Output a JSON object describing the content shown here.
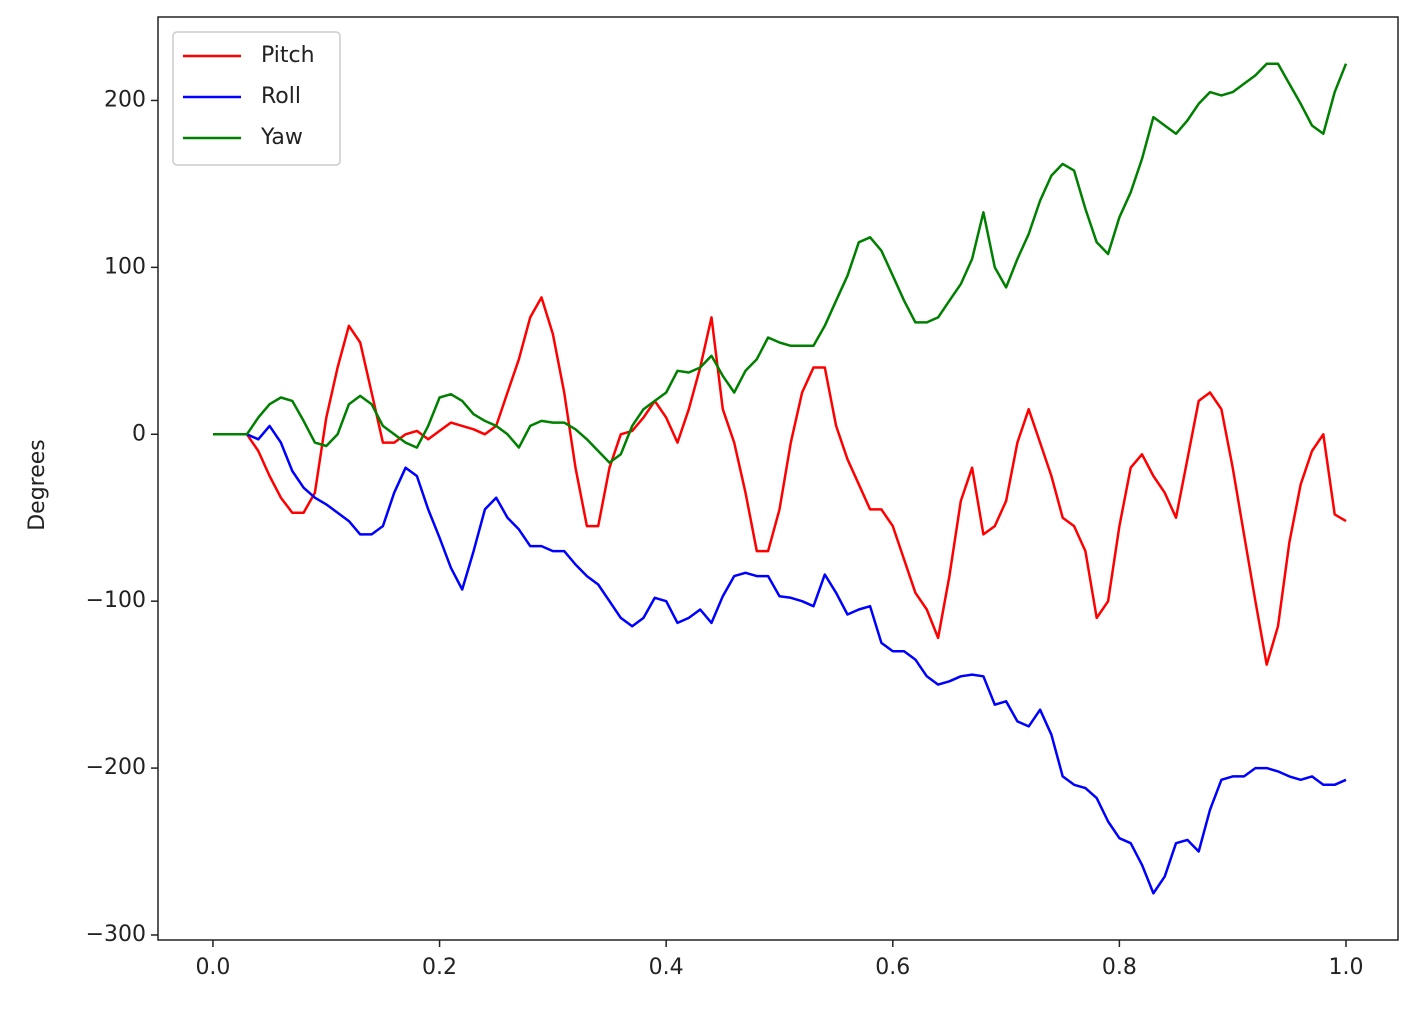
{
  "chart_data": {
    "type": "line",
    "ylabel": "Degrees",
    "x": [
      0,
      0.01,
      0.02,
      0.03,
      0.04,
      0.05,
      0.06,
      0.07,
      0.08,
      0.09,
      0.1,
      0.11,
      0.12,
      0.13,
      0.14,
      0.15,
      0.16,
      0.17,
      0.18,
      0.19,
      0.2,
      0.21,
      0.22,
      0.23,
      0.24,
      0.25,
      0.26,
      0.27,
      0.28,
      0.29,
      0.3,
      0.31,
      0.32,
      0.33,
      0.34,
      0.35,
      0.36,
      0.37,
      0.38,
      0.39,
      0.4,
      0.41,
      0.42,
      0.43,
      0.44,
      0.45,
      0.46,
      0.47,
      0.48,
      0.49,
      0.5,
      0.51,
      0.52,
      0.53,
      0.54,
      0.55,
      0.56,
      0.57,
      0.58,
      0.59,
      0.6,
      0.61,
      0.62,
      0.63,
      0.64,
      0.65,
      0.66,
      0.67,
      0.68,
      0.69,
      0.7,
      0.71,
      0.72,
      0.73,
      0.74,
      0.75,
      0.76,
      0.77,
      0.78,
      0.79,
      0.8,
      0.81,
      0.82,
      0.83,
      0.84,
      0.85,
      0.86,
      0.87,
      0.88,
      0.89,
      0.9,
      0.91,
      0.92,
      0.93,
      0.94,
      0.95,
      0.96,
      0.97,
      0.98,
      0.99,
      1
    ],
    "series": [
      {
        "name": "Pitch",
        "color": "#ff0000",
        "values": [
          0,
          0,
          0,
          0,
          -10,
          -25,
          -38,
          -47,
          -47,
          -35,
          10,
          40,
          65,
          55,
          25,
          -5,
          -5,
          0,
          2,
          -3,
          2,
          7,
          5,
          3,
          0,
          5,
          25,
          45,
          70,
          82,
          60,
          25,
          -20,
          -55,
          -55,
          -20,
          0,
          2,
          10,
          20,
          10,
          -5,
          15,
          40,
          70,
          15,
          -5,
          -35,
          -70,
          -70,
          -45,
          -5,
          25,
          40,
          40,
          5,
          -15,
          -30,
          -45,
          -45,
          -55,
          -75,
          -95,
          -105,
          -122,
          -85,
          -40,
          -20,
          -60,
          -55,
          -40,
          -5,
          15,
          -5,
          -25,
          -50,
          -55,
          -70,
          -110,
          -100,
          -55,
          -20,
          -12,
          -25,
          -35,
          -50,
          -15,
          20,
          25,
          15,
          -20,
          -60,
          -100,
          -138,
          -115,
          -65,
          -30,
          -10,
          0,
          -48,
          -52
        ]
      },
      {
        "name": "Roll",
        "color": "#0000ff",
        "values": [
          0,
          0,
          0,
          0,
          -3,
          5,
          -5,
          -22,
          -32,
          -38,
          -42,
          -47,
          -52,
          -60,
          -60,
          -55,
          -35,
          -20,
          -25,
          -45,
          -62,
          -80,
          -93,
          -70,
          -45,
          -38,
          -50,
          -57,
          -67,
          -67,
          -70,
          -70,
          -78,
          -85,
          -90,
          -100,
          -110,
          -115,
          -110,
          -98,
          -100,
          -113,
          -110,
          -105,
          -113,
          -97,
          -85,
          -83,
          -85,
          -85,
          -97,
          -98,
          -100,
          -103,
          -84,
          -95,
          -108,
          -105,
          -103,
          -125,
          -130,
          -130,
          -135,
          -145,
          -150,
          -148,
          -145,
          -144,
          -145,
          -162,
          -160,
          -172,
          -175,
          -165,
          -180,
          -205,
          -210,
          -212,
          -218,
          -232,
          -242,
          -245,
          -258,
          -275,
          -265,
          -245,
          -243,
          -250,
          -225,
          -207,
          -205,
          -205,
          -200,
          -200,
          -202,
          -205,
          -207,
          -205,
          -210,
          -210,
          -207
        ]
      },
      {
        "name": "Yaw",
        "color": "#008000",
        "values": [
          0,
          0,
          0,
          0,
          10,
          18,
          22,
          20,
          8,
          -5,
          -7,
          0,
          18,
          23,
          18,
          5,
          0,
          -5,
          -8,
          5,
          22,
          24,
          20,
          12,
          8,
          5,
          0,
          -8,
          5,
          8,
          7,
          7,
          3,
          -3,
          -10,
          -17,
          -12,
          5,
          15,
          20,
          25,
          38,
          37,
          40,
          47,
          35,
          25,
          38,
          45,
          58,
          55,
          53,
          53,
          53,
          65,
          80,
          95,
          115,
          118,
          110,
          95,
          80,
          67,
          67,
          70,
          80,
          90,
          105,
          133,
          100,
          88,
          105,
          120,
          140,
          155,
          162,
          158,
          135,
          115,
          108,
          130,
          145,
          165,
          190,
          185,
          180,
          188,
          198,
          205,
          203,
          205,
          210,
          215,
          222,
          222,
          210,
          198,
          185,
          180,
          205,
          222
        ]
      }
    ],
    "xlim": [
      -0.0485,
      1.0459
    ],
    "ylim": [
      -303,
      250
    ],
    "xticks": [
      {
        "value": 0,
        "label": "0.0"
      },
      {
        "value": 0.2,
        "label": "0.2"
      },
      {
        "value": 0.4,
        "label": "0.4"
      },
      {
        "value": 0.6,
        "label": "0.6"
      },
      {
        "value": 0.8,
        "label": "0.8"
      },
      {
        "value": 1,
        "label": "1.0"
      }
    ],
    "yticks": [
      {
        "value": -300,
        "label": "−300"
      },
      {
        "value": -200,
        "label": "−200"
      },
      {
        "value": -100,
        "label": "−100"
      },
      0,
      100,
      200
    ],
    "legend": "upper left"
  }
}
